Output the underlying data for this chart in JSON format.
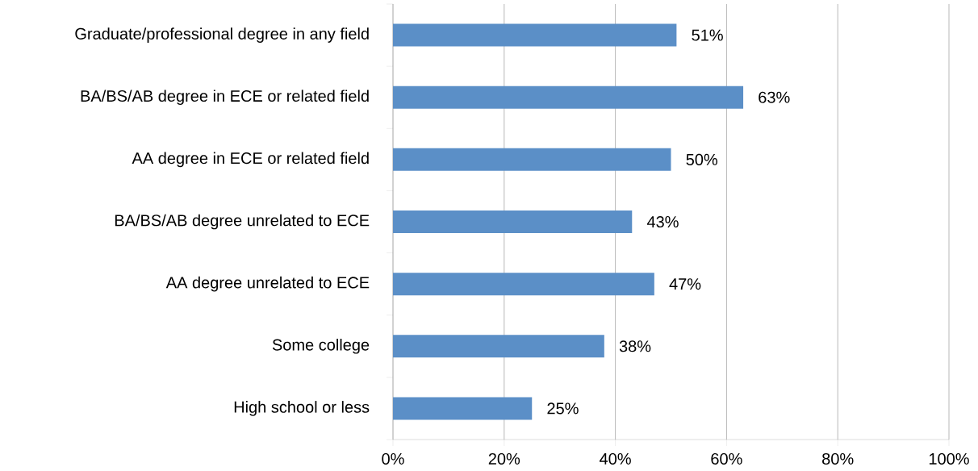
{
  "chart_data": {
    "type": "bar",
    "orientation": "horizontal",
    "categories": [
      "Graduate/professional degree in any field",
      "BA/BS/AB degree in ECE or related field",
      "AA degree in ECE or related field",
      "BA/BS/AB degree unrelated to ECE",
      "AA degree unrelated to ECE",
      "Some college",
      "High school or less"
    ],
    "values": [
      51,
      63,
      50,
      43,
      47,
      38,
      25
    ],
    "value_labels": [
      "51%",
      "63%",
      "50%",
      "43%",
      "47%",
      "38%",
      "25%"
    ],
    "color": "#5b8fc7",
    "xlim": [
      0,
      100
    ],
    "xticks": [
      {
        "value": 0,
        "label": "0%"
      },
      {
        "value": 20,
        "label": "20%"
      },
      {
        "value": 40,
        "label": "40%"
      },
      {
        "value": 60,
        "label": "60%"
      },
      {
        "value": 80,
        "label": "80%"
      },
      {
        "value": 100,
        "label": "100%"
      }
    ],
    "grid": "x"
  }
}
